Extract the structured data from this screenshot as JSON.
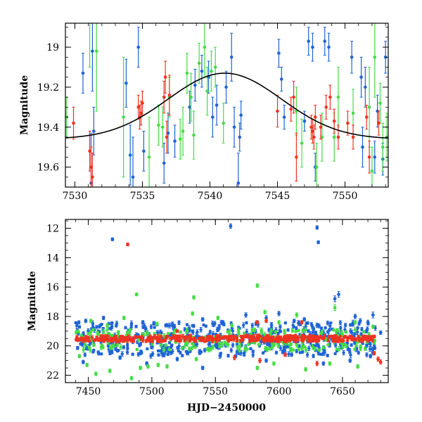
{
  "colors": {
    "blue": "#1f63d6",
    "green": "#44dd44",
    "red": "#ee3322",
    "model": "#000000"
  },
  "chart_data": [
    {
      "type": "scatter",
      "xlabel": "",
      "ylabel": "Magnitude",
      "xlim": [
        7529.3,
        7553.2
      ],
      "ylim": [
        19.7,
        18.88
      ],
      "y_inverted": true,
      "xticks": [
        "7530",
        "7535",
        "7540",
        "7545",
        "7550"
      ],
      "yticks": [
        "19",
        "19.2",
        "19.4",
        "19.6"
      ],
      "xtick_values": [
        7530,
        7535,
        7540,
        7545,
        7550
      ],
      "ytick_values": [
        19.0,
        19.2,
        19.4,
        19.6
      ],
      "model_curve": {
        "type": "gaussian",
        "baseline": 19.46,
        "amplitude": 0.33,
        "center": 7541.1,
        "sigma": 4.2
      },
      "series": [
        {
          "color": "blue",
          "points": [
            [
              7530.6,
              19.13,
              0.1
            ],
            [
              7531.2,
              19.68,
              0.25
            ],
            [
              7531.3,
              19.02,
              0.2
            ],
            [
              7531.4,
              19.42,
              0.12
            ],
            [
              7533.8,
              19.18,
              0.12
            ],
            [
              7534.1,
              19.54,
              0.15
            ],
            [
              7534.3,
              19.65,
              0.2
            ],
            [
              7534.7,
              19.0,
              0.1
            ],
            [
              7535.1,
              19.52,
              0.1
            ],
            [
              7536.6,
              19.58,
              0.1
            ],
            [
              7536.9,
              19.43,
              0.1
            ],
            [
              7537.4,
              19.47,
              0.08
            ],
            [
              7538.5,
              19.3,
              0.08
            ],
            [
              7538.9,
              19.19,
              0.08
            ],
            [
              7539.4,
              19.12,
              0.08
            ],
            [
              7539.9,
              19.15,
              0.08
            ],
            [
              7540.2,
              19.35,
              0.1
            ],
            [
              7540.5,
              19.29,
              0.1
            ],
            [
              7541.2,
              19.2,
              0.08
            ],
            [
              7541.6,
              19.05,
              0.12
            ],
            [
              7541.8,
              19.4,
              0.1
            ],
            [
              7542.1,
              19.68,
              0.15
            ],
            [
              7542.2,
              19.45,
              0.07
            ],
            [
              7542.3,
              19.34,
              0.07
            ],
            [
              7545.1,
              19.03,
              0.07
            ],
            [
              7545.3,
              19.16,
              0.06
            ],
            [
              7545.5,
              19.35,
              0.06
            ],
            [
              7547.0,
              19.37,
              0.05
            ],
            [
              7547.3,
              18.97,
              0.07
            ],
            [
              7547.6,
              19.0,
              0.07
            ],
            [
              7547.8,
              19.6,
              0.07
            ],
            [
              7548.5,
              18.97,
              0.07
            ],
            [
              7548.8,
              19.0,
              0.07
            ],
            [
              7550.5,
              19.05,
              0.08
            ],
            [
              7551.2,
              19.15,
              0.1
            ],
            [
              7551.3,
              19.5,
              0.1
            ],
            [
              7551.5,
              19.2,
              0.1
            ],
            [
              7552.2,
              19.55,
              0.08
            ],
            [
              7552.4,
              19.32,
              0.08
            ],
            [
              7552.8,
              19.56,
              0.08
            ],
            [
              7553.0,
              19.05,
              0.08
            ]
          ]
        },
        {
          "color": "green",
          "points": [
            [
              7529.4,
              19.35,
              0.1
            ],
            [
              7531.1,
              18.85,
              0.25
            ],
            [
              7531.6,
              19.02,
              0.3
            ],
            [
              7533.6,
              19.35,
              0.3
            ],
            [
              7535.5,
              19.55,
              0.2
            ],
            [
              7536.2,
              19.39,
              0.1
            ],
            [
              7536.5,
              19.4,
              0.1
            ],
            [
              7537.0,
              19.25,
              0.1
            ],
            [
              7537.8,
              19.46,
              0.1
            ],
            [
              7538.0,
              19.42,
              0.12
            ],
            [
              7538.3,
              19.13,
              0.1
            ],
            [
              7538.6,
              19.25,
              0.12
            ],
            [
              7538.8,
              19.44,
              0.12
            ],
            [
              7539.2,
              19.08,
              0.1
            ],
            [
              7539.6,
              19.0,
              0.15
            ],
            [
              7539.8,
              19.22,
              0.12
            ],
            [
              7540.1,
              19.12,
              0.1
            ],
            [
              7540.4,
              19.1,
              0.1
            ],
            [
              7541.0,
              19.38,
              0.1
            ],
            [
              7546.4,
              19.32,
              0.12
            ],
            [
              7546.8,
              19.48,
              0.12
            ],
            [
              7547.9,
              19.6,
              0.12
            ],
            [
              7548.3,
              19.45,
              0.12
            ],
            [
              7549.2,
              19.45,
              0.12
            ],
            [
              7549.5,
              19.25,
              0.15
            ],
            [
              7550.6,
              19.33,
              0.12
            ],
            [
              7551.8,
              19.3,
              0.2
            ],
            [
              7552.0,
              19.62,
              0.12
            ],
            [
              7552.2,
              19.05,
              0.2
            ],
            [
              7552.6,
              19.28,
              0.1
            ],
            [
              7552.8,
              19.5,
              0.12
            ],
            [
              7553.1,
              19.45,
              0.12
            ]
          ]
        },
        {
          "color": "red",
          "points": [
            [
              7529.9,
              19.38,
              0.08
            ],
            [
              7531.1,
              19.52,
              0.1
            ],
            [
              7531.2,
              19.6,
              0.1
            ],
            [
              7531.3,
              19.65,
              0.12
            ],
            [
              7534.7,
              19.3,
              0.06
            ],
            [
              7534.8,
              19.35,
              0.06
            ],
            [
              7534.9,
              19.33,
              0.06
            ],
            [
              7535.0,
              19.28,
              0.06
            ],
            [
              7536.6,
              19.25,
              0.08
            ],
            [
              7536.7,
              19.15,
              0.08
            ],
            [
              7536.8,
              19.45,
              0.08
            ],
            [
              7537.0,
              19.24,
              0.1
            ],
            [
              7545.0,
              19.32,
              0.08
            ],
            [
              7546.0,
              19.31,
              0.06
            ],
            [
              7546.2,
              19.25,
              0.08
            ],
            [
              7546.4,
              19.55,
              0.12
            ],
            [
              7547.5,
              19.4,
              0.06
            ],
            [
              7547.6,
              19.42,
              0.06
            ],
            [
              7547.7,
              19.45,
              0.06
            ],
            [
              7547.8,
              19.35,
              0.06
            ],
            [
              7548.2,
              19.4,
              0.06
            ],
            [
              7548.6,
              19.3,
              0.06
            ],
            [
              7548.9,
              19.25,
              0.06
            ],
            [
              7549.2,
              19.37,
              0.06
            ],
            [
              7549.5,
              19.45,
              0.06
            ],
            [
              7550.2,
              19.38,
              0.06
            ],
            [
              7550.6,
              19.45,
              0.06
            ],
            [
              7551.6,
              19.35,
              0.06
            ],
            [
              7551.8,
              19.55,
              0.08
            ],
            [
              7552.5,
              19.38,
              0.06
            ]
          ]
        }
      ]
    },
    {
      "type": "scatter",
      "xlabel": "HJD−2450000",
      "ylabel": "Magnitude",
      "xlim": [
        7432,
        7686
      ],
      "ylim": [
        22.5,
        11.4
      ],
      "y_inverted": true,
      "xticks": [
        "7450",
        "7500",
        "7550",
        "7600",
        "7650"
      ],
      "yticks": [
        "12",
        "14",
        "16",
        "18",
        "20",
        "22"
      ],
      "xtick_values": [
        7450,
        7500,
        7550,
        7600,
        7650
      ],
      "ytick_values": [
        12,
        14,
        16,
        18,
        20,
        22
      ],
      "series": [
        {
          "color": "blue",
          "points": [
            [
              7469,
              12.75,
              0.1
            ],
            [
              7562,
              11.85,
              0.15
            ],
            [
              7630,
              11.95,
              0.12
            ],
            [
              7631,
              12.95,
              0.1
            ],
            [
              7644,
              16.8,
              0.2
            ],
            [
              7647,
              16.5,
              0.2
            ],
            [
              7630,
              18.6,
              0.15
            ],
            [
              7660,
              18.0,
              0.15
            ],
            [
              7664,
              18.3,
              0.15
            ],
            [
              7670,
              18.4,
              0.15
            ],
            [
              7674,
              17.9,
              0.2
            ],
            [
              7680,
              19.1,
              0.12
            ],
            [
              7448,
              18.3,
              0.12
            ],
            [
              7462,
              18.1,
              0.12
            ],
            [
              7493,
              18.4,
              0.12
            ],
            [
              7512,
              18.6,
              0.12
            ],
            [
              7540,
              18.2,
              0.12
            ],
            [
              7574,
              17.9,
              0.15
            ],
            [
              7582,
              18.5,
              0.12
            ],
            [
              7590,
              18.1,
              0.15
            ],
            [
              7600,
              17.8,
              0.15
            ],
            [
              7620,
              18.2,
              0.12
            ],
            [
              7612,
              18.3,
              0.12
            ],
            [
              7556,
              18.4,
              0.12
            ],
            [
              7446,
              21.1,
              0.12
            ],
            [
              7475,
              20.8,
              0.12
            ],
            [
              7496,
              21.2,
              0.12
            ],
            [
              7520,
              20.9,
              0.12
            ],
            [
              7540,
              21.5,
              0.12
            ],
            [
              7566,
              20.7,
              0.12
            ],
            [
              7590,
              21.0,
              0.12
            ],
            [
              7610,
              20.6,
              0.12
            ],
            [
              7635,
              21.2,
              0.12
            ],
            [
              7656,
              21.0,
              0.12
            ],
            [
              7672,
              20.7,
              0.12
            ]
          ]
        },
        {
          "color": "green",
          "points": [
            [
              7488,
              16.5,
              0.1
            ],
            [
              7533,
              16.7,
              0.12
            ],
            [
              7583,
              15.9,
              0.12
            ],
            [
              7589,
              17.7,
              0.12
            ],
            [
              7614,
              17.9,
              0.15
            ],
            [
              7644,
              17.4,
              0.2
            ],
            [
              7452,
              18.3,
              0.12
            ],
            [
              7465,
              18.6,
              0.12
            ],
            [
              7478,
              18.1,
              0.12
            ],
            [
              7504,
              18.5,
              0.12
            ],
            [
              7532,
              17.8,
              0.12
            ],
            [
              7552,
              18.1,
              0.12
            ],
            [
              7563,
              18.6,
              0.12
            ],
            [
              7600,
              18.4,
              0.12
            ],
            [
              7660,
              18.4,
              0.12
            ],
            [
              7674,
              18.7,
              0.12
            ],
            [
              7443,
              20.7,
              0.12
            ],
            [
              7449,
              21.3,
              0.12
            ],
            [
              7456,
              21.9,
              0.12
            ],
            [
              7467,
              21.7,
              0.12
            ],
            [
              7484,
              22.2,
              0.12
            ],
            [
              7491,
              21.5,
              0.12
            ],
            [
              7497,
              21.4,
              0.12
            ],
            [
              7505,
              21.3,
              0.12
            ],
            [
              7512,
              21.4,
              0.12
            ],
            [
              7535,
              20.9,
              0.12
            ],
            [
              7583,
              21.5,
              0.12
            ],
            [
              7596,
              21.2,
              0.12
            ],
            [
              7621,
              21.6,
              0.12
            ],
            [
              7640,
              21.2,
              0.12
            ],
            [
              7662,
              21.4,
              0.12
            ]
          ]
        },
        {
          "color": "red",
          "points": [
            [
              7481,
              13.1,
              0.1
            ],
            [
              7583,
              18.4,
              0.12
            ],
            [
              7590,
              18.3,
              0.12
            ],
            [
              7618,
              18.4,
              0.12
            ],
            [
              7520,
              19.0,
              0.1
            ],
            [
              7565,
              20.8,
              0.15
            ],
            [
              7585,
              21.0,
              0.15
            ],
            [
              7605,
              20.6,
              0.12
            ],
            [
              7630,
              21.2,
              0.15
            ],
            [
              7675,
              20.5,
              0.12
            ],
            [
              7678,
              20.9,
              0.15
            ],
            [
              7680,
              21.1,
              0.15
            ]
          ]
        }
      ],
      "dense_band": [
        {
          "color": "blue",
          "x_range": [
            7440,
            7676
          ],
          "y_range": [
            18.4,
            20.7
          ],
          "err": 0.12
        },
        {
          "color": "green",
          "x_range": [
            7440,
            7676
          ],
          "y_range": [
            18.9,
            20.3
          ],
          "err": 0.12
        },
        {
          "color": "red",
          "x_range": [
            7440,
            7676
          ],
          "y_center": 19.5,
          "y_spread": 0.18,
          "err": 0.1
        }
      ]
    }
  ]
}
